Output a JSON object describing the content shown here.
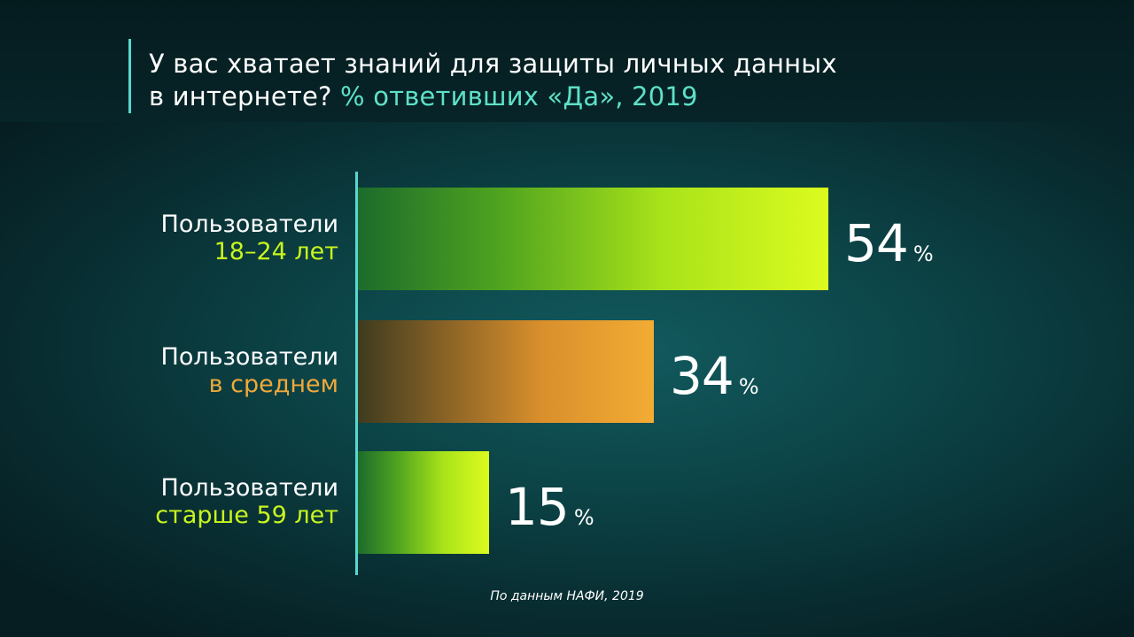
{
  "title": {
    "line1": "У вас хватает знаний для защиты личных данных",
    "line2_main": "в интернете?",
    "line2_accent": "% ответивших «Да», 2019"
  },
  "source": "По данным НАФИ, 2019",
  "colors": {
    "accent_title": "#5ee0c8",
    "axis": "#5ad6cf",
    "green_label": "#c8f51e",
    "orange_label": "#f0a93a"
  },
  "chart_data": {
    "type": "bar",
    "orientation": "horizontal",
    "xlim": [
      0,
      54
    ],
    "categories": [
      "Пользователи 18–24 лет",
      "Пользователи в среднем",
      "Пользователи старше 59 лет"
    ],
    "values": [
      54,
      34,
      15
    ],
    "unit": "%",
    "rows": [
      {
        "line1": "Пользователи",
        "line2": "18–24 лет",
        "value": 54,
        "pct": "%",
        "style": "green"
      },
      {
        "line1": "Пользователи",
        "line2": "в среднем",
        "value": 34,
        "pct": "%",
        "style": "orange"
      },
      {
        "line1": "Пользователи",
        "line2": "старше 59 лет",
        "value": 15,
        "pct": "%",
        "style": "green"
      }
    ]
  }
}
